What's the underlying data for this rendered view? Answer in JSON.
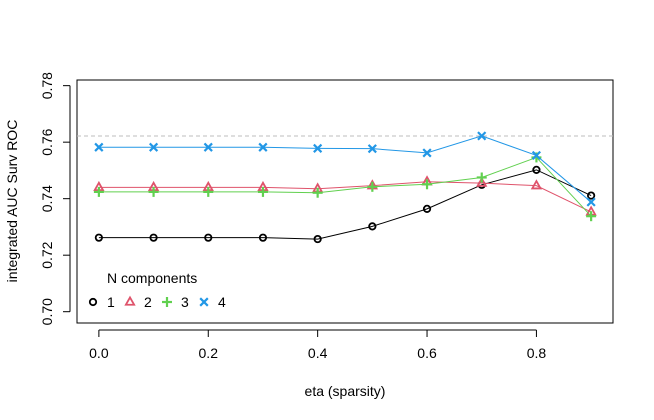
{
  "chart_data": {
    "type": "line",
    "xlabel": "eta (sparsity)",
    "ylabel": "integrated AUC Surv ROC",
    "xlim": [
      -0.04,
      0.94
    ],
    "ylim": [
      0.696,
      0.782
    ],
    "x_ticks": [
      0.0,
      0.2,
      0.4,
      0.6,
      0.8
    ],
    "x_tick_labels": [
      "0.0",
      "0.2",
      "0.4",
      "0.6",
      "0.8"
    ],
    "y_ticks": [
      0.7,
      0.72,
      0.74,
      0.76,
      0.78
    ],
    "y_tick_labels": [
      "0.70",
      "0.72",
      "0.74",
      "0.76",
      "0.78"
    ],
    "x": [
      0.0,
      0.1,
      0.2,
      0.3,
      0.4,
      0.5,
      0.6,
      0.7,
      0.8,
      0.9
    ],
    "reference_line": {
      "y": 0.7622,
      "style": "dashed",
      "color": "#BEBEBE"
    },
    "legend": {
      "title": "N components",
      "placement": "bottom-left",
      "orientation": "horizontal"
    },
    "series": [
      {
        "name": "1",
        "marker": "circle",
        "color": "#000000",
        "values": [
          0.7262,
          0.7262,
          0.7262,
          0.7262,
          0.7257,
          0.7302,
          0.7364,
          0.7449,
          0.7502,
          0.7411
        ]
      },
      {
        "name": "2",
        "marker": "triangle",
        "color": "#DF536B",
        "values": [
          0.744,
          0.744,
          0.744,
          0.744,
          0.7435,
          0.7446,
          0.746,
          0.7455,
          0.7446,
          0.7353
        ]
      },
      {
        "name": "3",
        "marker": "plus",
        "color": "#61D04F",
        "values": [
          0.7424,
          0.7424,
          0.7424,
          0.7424,
          0.7421,
          0.7442,
          0.7451,
          0.7475,
          0.7546,
          0.7338
        ]
      },
      {
        "name": "4",
        "marker": "cross",
        "color": "#2297E6",
        "values": [
          0.7582,
          0.7582,
          0.7582,
          0.7582,
          0.7578,
          0.7577,
          0.7562,
          0.7622,
          0.7553,
          0.7388
        ]
      }
    ]
  }
}
